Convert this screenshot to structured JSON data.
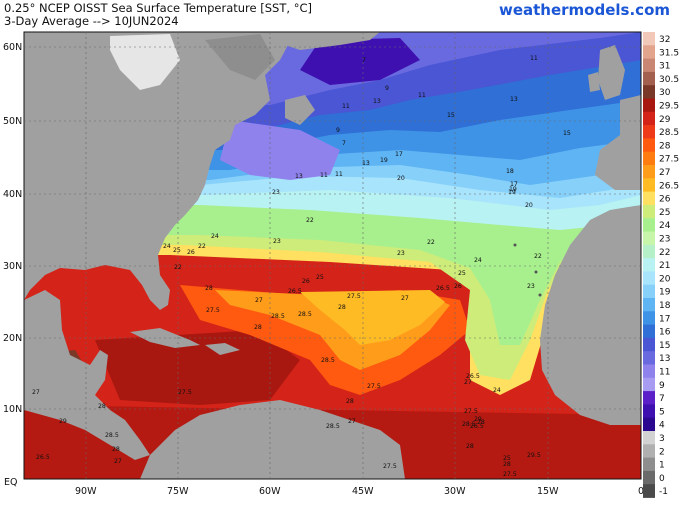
{
  "header": {
    "title_line1": "0.25° NCEP OISST Sea Surface Temperature [SST, °C]",
    "title_line2": "3-Day Average --> 10JUN2024",
    "brand": "weathermodels.com"
  },
  "map": {
    "region": "North Atlantic Ocean",
    "lat_labels": [
      "60N",
      "50N",
      "40N",
      "30N",
      "20N",
      "10N",
      "EQ"
    ],
    "lon_labels": [
      "90W",
      "75W",
      "60W",
      "45W",
      "30W",
      "15W",
      "0"
    ]
  },
  "colorbar": {
    "labels": [
      "32",
      "31.5",
      "31",
      "30.5",
      "30",
      "29.5",
      "29",
      "28.5",
      "28",
      "27.5",
      "27",
      "26.5",
      "26",
      "25",
      "24",
      "23",
      "22",
      "21",
      "20",
      "19",
      "18",
      "17",
      "16",
      "15",
      "13",
      "11",
      "9",
      "7",
      "5",
      "4",
      "3",
      "2",
      "1",
      "0",
      "-1"
    ],
    "colors": [
      "#f2c8b8",
      "#e2a48c",
      "#c98672",
      "#a4604e",
      "#7a3828",
      "#a81810",
      "#d42318",
      "#ee3a18",
      "#ff5a10",
      "#ff7c10",
      "#ff9c1a",
      "#ffbb24",
      "#ffe060",
      "#cdec7a",
      "#a8f08e",
      "#c7f5aa",
      "#b6f0c8",
      "#b8f2f2",
      "#a8e4fb",
      "#86d0fa",
      "#5fb4f3",
      "#3e93e6",
      "#2f6fd6",
      "#4a56d4",
      "#6a6ae0",
      "#8f82ec",
      "#a89cf2",
      "#5c20c8",
      "#3f10b0",
      "#2a0890",
      "#d2d2d2",
      "#b0b0b0",
      "#8e8e8e",
      "#6a6a6a",
      "#4a4a4a"
    ]
  },
  "contour_labels": [
    {
      "text": "7"
    },
    {
      "text": "9"
    },
    {
      "text": "11"
    },
    {
      "text": "13"
    },
    {
      "text": "11"
    },
    {
      "text": "11"
    },
    {
      "text": "13"
    },
    {
      "text": "15"
    },
    {
      "text": "15"
    },
    {
      "text": "9"
    },
    {
      "text": "7"
    },
    {
      "text": "13"
    },
    {
      "text": "17"
    },
    {
      "text": "19"
    },
    {
      "text": "18"
    },
    {
      "text": "20"
    },
    {
      "text": "17"
    },
    {
      "text": "19"
    },
    {
      "text": "19"
    },
    {
      "text": "20"
    },
    {
      "text": "11"
    },
    {
      "text": "13"
    },
    {
      "text": "11"
    },
    {
      "text": "23"
    },
    {
      "text": "22"
    },
    {
      "text": "24"
    },
    {
      "text": "22"
    },
    {
      "text": "22"
    },
    {
      "text": "23"
    },
    {
      "text": "22"
    },
    {
      "text": "23"
    },
    {
      "text": "24"
    },
    {
      "text": "25"
    },
    {
      "text": "22"
    },
    {
      "text": "26"
    },
    {
      "text": "23"
    },
    {
      "text": "24"
    },
    {
      "text": "25"
    },
    {
      "text": "26"
    },
    {
      "text": "26.5"
    },
    {
      "text": "26"
    },
    {
      "text": "25"
    },
    {
      "text": "27"
    },
    {
      "text": "27.5"
    },
    {
      "text": "26.5"
    },
    {
      "text": "27"
    },
    {
      "text": "28"
    },
    {
      "text": "27.5"
    },
    {
      "text": "28"
    },
    {
      "text": "28.5"
    },
    {
      "text": "28.5"
    },
    {
      "text": "27.5"
    },
    {
      "text": "28"
    },
    {
      "text": "26.5"
    },
    {
      "text": "27"
    },
    {
      "text": "24"
    },
    {
      "text": "28.5"
    },
    {
      "text": "28"
    },
    {
      "text": "27.5"
    },
    {
      "text": "28"
    },
    {
      "text": "29"
    },
    {
      "text": "28.5"
    },
    {
      "text": "27"
    },
    {
      "text": "26.5"
    },
    {
      "text": "28"
    },
    {
      "text": "27.5"
    },
    {
      "text": "29"
    },
    {
      "text": "28"
    },
    {
      "text": "28"
    },
    {
      "text": "28.5"
    },
    {
      "text": "26.5"
    },
    {
      "text": "27.5"
    },
    {
      "text": "28"
    },
    {
      "text": "27.5"
    },
    {
      "text": "29.5"
    },
    {
      "text": "25"
    },
    {
      "text": "27"
    },
    {
      "text": "28.5"
    },
    {
      "text": "27"
    }
  ]
}
